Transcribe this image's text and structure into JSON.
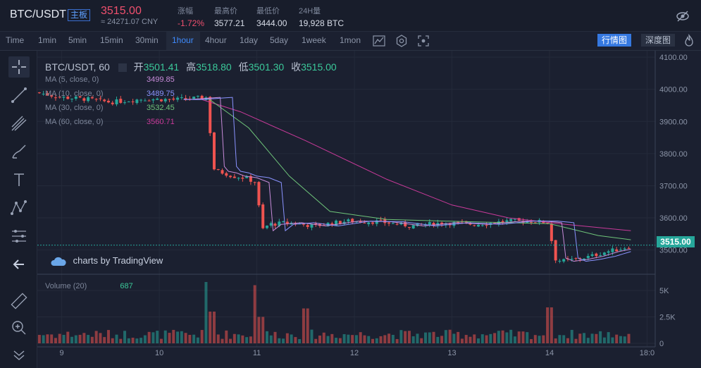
{
  "header": {
    "pair": "BTC/USDT",
    "market_badge": "主板",
    "last_price": "3515.00",
    "cny_price": "≈ 24271.07 CNY",
    "stats": [
      {
        "label": "涨幅",
        "value": "-1.72%"
      },
      {
        "label": "最高价",
        "value": "3577.21"
      },
      {
        "label": "最低价",
        "value": "3444.00"
      },
      {
        "label": "24H量",
        "value": "19,928 BTC"
      }
    ]
  },
  "toolbar": {
    "timeframes": [
      "Time",
      "1min",
      "5min",
      "15min",
      "30min",
      "1hour",
      "4hour",
      "1day",
      "5day",
      "1week",
      "1mon"
    ],
    "active_timeframe": "1hour",
    "view_kline": "行情图",
    "view_depth": "深度图"
  },
  "legend": {
    "symbol": "BTC/USDT, 60",
    "open_label": "开",
    "open": "3501.41",
    "high_label": "高",
    "high": "3518.80",
    "low_label": "低",
    "low": "3501.30",
    "close_label": "收",
    "close": "3515.00"
  },
  "ma_lines": [
    {
      "label": "MA (5, close, 0)",
      "value": "3499.85",
      "color": "#c78bd9"
    },
    {
      "label": "MA (10, close, 0)",
      "value": "3489.75",
      "color": "#8a93ff"
    },
    {
      "label": "MA (30, close, 0)",
      "value": "3532.45",
      "color": "#6fc57a"
    },
    {
      "label": "MA (60, close, 0)",
      "value": "3560.71",
      "color": "#c93a9a"
    }
  ],
  "volume": {
    "label": "Volume (20)",
    "value": "687"
  },
  "branding": "charts by TradingView",
  "price_tag": "3515.00",
  "colors": {
    "up": "#26a69a",
    "down": "#ef5350",
    "accent": "#3f8cff"
  },
  "chart_data": {
    "type": "candlestick",
    "price_axis_ticks": [
      4100,
      4000,
      3900,
      3800,
      3700,
      3600,
      3500
    ],
    "price_axis_labels": [
      "4100.00",
      "4000.00",
      "3900.00",
      "3800.00",
      "3700.00",
      "3600.00",
      "3500.00"
    ],
    "price_range": [
      3440,
      4120
    ],
    "volume_axis_labels": [
      "5K",
      "2.5K",
      "0"
    ],
    "volume_axis_values": [
      5000,
      2500,
      0
    ],
    "volume_range": [
      0,
      6000
    ],
    "time_labels": [
      "9",
      "10",
      "11",
      "12",
      "13",
      "14",
      "18:0"
    ],
    "time_label_hours": [
      0,
      24,
      48,
      72,
      96,
      120,
      144
    ],
    "hours_span": [
      -6,
      146
    ],
    "close_series": [
      {
        "h": -6,
        "v": 3990
      },
      {
        "h": 0,
        "v": 3975
      },
      {
        "h": 6,
        "v": 3970
      },
      {
        "h": 12,
        "v": 3960
      },
      {
        "h": 20,
        "v": 3970
      },
      {
        "h": 28,
        "v": 3968
      },
      {
        "h": 36,
        "v": 3975
      },
      {
        "h": 37,
        "v": 3760
      },
      {
        "h": 38,
        "v": 3745
      },
      {
        "h": 40,
        "v": 3740
      },
      {
        "h": 42,
        "v": 3730
      },
      {
        "h": 45,
        "v": 3725
      },
      {
        "h": 48,
        "v": 3710
      },
      {
        "h": 49,
        "v": 3560
      },
      {
        "h": 51,
        "v": 3580
      },
      {
        "h": 56,
        "v": 3585
      },
      {
        "h": 62,
        "v": 3575
      },
      {
        "h": 70,
        "v": 3590
      },
      {
        "h": 78,
        "v": 3588
      },
      {
        "h": 86,
        "v": 3575
      },
      {
        "h": 94,
        "v": 3585
      },
      {
        "h": 102,
        "v": 3580
      },
      {
        "h": 110,
        "v": 3590
      },
      {
        "h": 116,
        "v": 3590
      },
      {
        "h": 120,
        "v": 3585
      },
      {
        "h": 121,
        "v": 3475
      },
      {
        "h": 123,
        "v": 3465
      },
      {
        "h": 126,
        "v": 3470
      },
      {
        "h": 130,
        "v": 3480
      },
      {
        "h": 134,
        "v": 3495
      },
      {
        "h": 138,
        "v": 3505
      },
      {
        "h": 140,
        "v": 3515
      }
    ],
    "ma60_series": [
      {
        "h": 34,
        "v": 3970
      },
      {
        "h": 44,
        "v": 3930
      },
      {
        "h": 60,
        "v": 3840
      },
      {
        "h": 80,
        "v": 3720
      },
      {
        "h": 96,
        "v": 3640
      },
      {
        "h": 110,
        "v": 3600
      },
      {
        "h": 124,
        "v": 3580
      },
      {
        "h": 140,
        "v": 3560
      }
    ],
    "ma30_series": [
      {
        "h": 36,
        "v": 3972
      },
      {
        "h": 46,
        "v": 3880
      },
      {
        "h": 56,
        "v": 3730
      },
      {
        "h": 66,
        "v": 3620
      },
      {
        "h": 80,
        "v": 3595
      },
      {
        "h": 100,
        "v": 3588
      },
      {
        "h": 120,
        "v": 3582
      },
      {
        "h": 132,
        "v": 3545
      },
      {
        "h": 140,
        "v": 3532
      }
    ],
    "volume_spikes": [
      {
        "h": 36,
        "v": 5800
      },
      {
        "h": 37,
        "v": 3000
      },
      {
        "h": 48,
        "v": 5500
      },
      {
        "h": 49,
        "v": 2500
      },
      {
        "h": 60,
        "v": 3300
      },
      {
        "h": 120,
        "v": 3400
      }
    ]
  }
}
